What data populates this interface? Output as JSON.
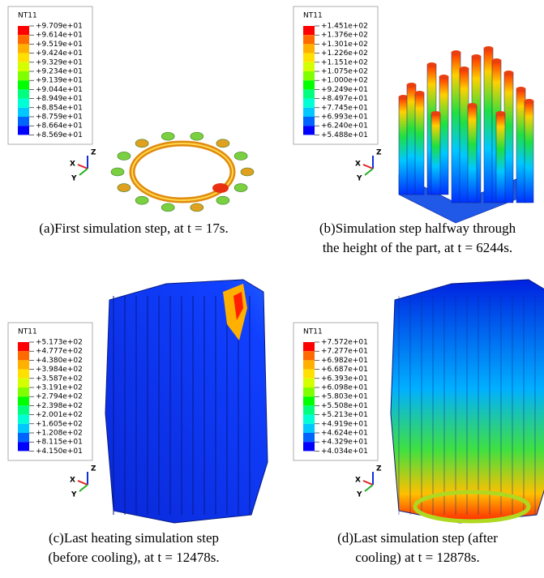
{
  "panels": [
    {
      "legend": {
        "title": "NT11",
        "labels": [
          "+9.709e+01",
          "+9.614e+01",
          "+9.519e+01",
          "+9.424e+01",
          "+9.329e+01",
          "+9.234e+01",
          "+9.139e+01",
          "+9.044e+01",
          "+8.949e+01",
          "+8.854e+01",
          "+8.759e+01",
          "+8.664e+01",
          "+8.569e+01"
        ]
      },
      "axes": {
        "x": "X",
        "y": "Y",
        "z": "Z"
      },
      "caption": [
        "(a)First simulation step, at t = 17s."
      ]
    },
    {
      "legend": {
        "title": "NT11",
        "labels": [
          "+1.451e+02",
          "+1.376e+02",
          "+1.301e+02",
          "+1.226e+02",
          "+1.151e+02",
          "+1.075e+02",
          "+1.000e+02",
          "+9.249e+01",
          "+8.497e+01",
          "+7.745e+01",
          "+6.993e+01",
          "+6.240e+01",
          "+5.488e+01"
        ]
      },
      "axes": {
        "x": "X",
        "y": "Y",
        "z": "Z"
      },
      "caption": [
        "(b)Simulation step halfway through",
        "the height of the part, at t = 6244s."
      ]
    },
    {
      "legend": {
        "title": "NT11",
        "labels": [
          "+5.173e+02",
          "+4.777e+02",
          "+4.380e+02",
          "+3.984e+02",
          "+3.587e+02",
          "+3.191e+02",
          "+2.794e+02",
          "+2.398e+02",
          "+2.001e+02",
          "+1.605e+02",
          "+1.208e+02",
          "+8.115e+01",
          "+4.150e+01"
        ]
      },
      "axes": {
        "x": "X",
        "y": "Y",
        "z": "Z"
      },
      "caption": [
        "(c)Last heating simulation step",
        "(before cooling), at t = 12478s."
      ]
    },
    {
      "legend": {
        "title": "NT11",
        "labels": [
          "+7.572e+01",
          "+7.277e+01",
          "+6.982e+01",
          "+6.687e+01",
          "+6.393e+01",
          "+6.098e+01",
          "+5.803e+01",
          "+5.508e+01",
          "+5.213e+01",
          "+4.919e+01",
          "+4.624e+01",
          "+4.329e+01",
          "+4.034e+01"
        ]
      },
      "axes": {
        "x": "X",
        "y": "Y",
        "z": "Z"
      },
      "caption": [
        "(d)Last simulation step (after",
        "cooling) at t = 12878s."
      ]
    }
  ]
}
